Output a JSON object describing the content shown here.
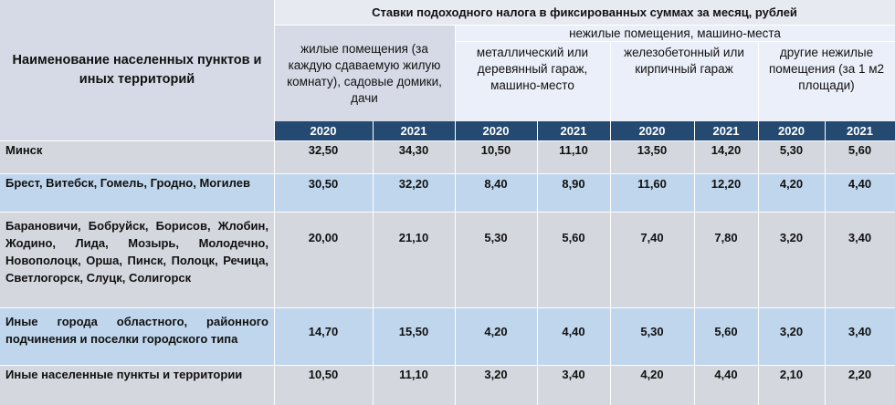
{
  "header": {
    "name_column": "Наименование населенных пунктов и иных территорий",
    "super": "Ставки подоходного налога в фиксированных суммах за месяц, рублей",
    "residential": "жилые помещения (за каждую сдаваемую жилую комнату), садовые домики, дачи",
    "nonresidential": "нежилые помещения, машино-места",
    "sub": [
      "металлический или деревянный гараж, машино-место",
      "железобетонный или кирпичный гараж",
      "другие нежилые помещения (за 1 м2 площади)"
    ],
    "years": [
      "2020",
      "2021",
      "2020",
      "2021",
      "2020",
      "2021",
      "2020",
      "2021"
    ]
  },
  "rows": [
    {
      "name": "Минск",
      "values": [
        "32,50",
        "34,30",
        "10,50",
        "11,10",
        "13,50",
        "14,20",
        "5,30",
        "5,60"
      ]
    },
    {
      "name": "Брест, Витебск, Гомель, Гродно, Могилев",
      "values": [
        "30,50",
        "32,20",
        "8,40",
        "8,90",
        "11,60",
        "12,20",
        "4,20",
        "4,40"
      ]
    },
    {
      "name": "Барановичи, Бобруйск, Борисов, Жлобин, Жодино, Лида, Мозырь, Молодечно, Новополоцк, Орша, Пинск, Полоцк, Речица, Светлогорск, Слуцк, Солигорск",
      "values": [
        "20,00",
        "21,10",
        "5,30",
        "5,60",
        "7,40",
        "7,80",
        "3,20",
        "3,40"
      ]
    },
    {
      "name": "Иные города областного, районного подчинения и поселки городского типа",
      "values": [
        "14,70",
        "15,50",
        "4,20",
        "4,40",
        "5,30",
        "5,60",
        "3,20",
        "3,40"
      ]
    },
    {
      "name": "Иные населенные пункты и территории",
      "values": [
        "10,50",
        "11,10",
        "3,20",
        "3,40",
        "4,20",
        "4,40",
        "2,10",
        "2,20"
      ]
    }
  ]
}
